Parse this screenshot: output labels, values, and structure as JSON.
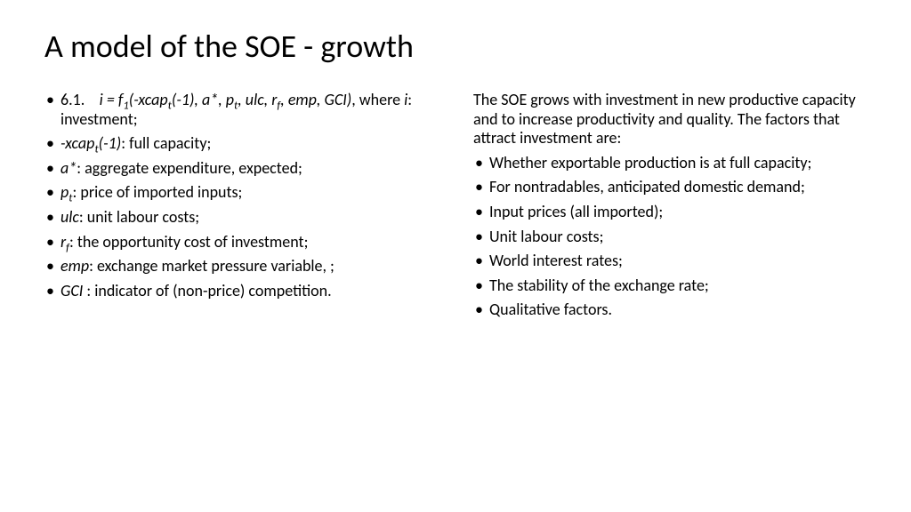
{
  "title": "A model of the SOE - growth",
  "left": {
    "items": [
      {
        "html": "6.1.&nbsp;&nbsp;&nbsp;&nbsp;<span class=\"i\">i = f<sub>1</sub>(-xcap<sub>t</sub>(-1), a*, p<sub>t</sub>, ulc, r<sub>f</sub>, emp, GCI)</span>, where <span class=\"i\">i</span>: investment;"
      },
      {
        "html": "<span class=\"i\">-xcap<sub>t</sub>(-1)</span>: full capacity;"
      },
      {
        "html": "<span class=\"i\">a*</span>: aggregate expenditure, expected;"
      },
      {
        "html": "<span class=\"i\">p<sub>t</sub></span>: price of imported inputs;"
      },
      {
        "html": "<span class=\"i\">ulc</span>: unit labour costs;"
      },
      {
        "html": "<span class=\"i\">r<sub>f</sub></span>: the opportunity cost of investment;"
      },
      {
        "html": "<span class=\"i\">emp</span>: exchange market pressure variable, ;"
      },
      {
        "html": "<span class=\"i\">GCI</span> : indicator of (non-price) competition."
      }
    ]
  },
  "right": {
    "intro": "The SOE grows with investment in new productive capacity and to increase productivity and quality. The factors that attract investment are:",
    "items": [
      "Whether exportable production is at full capacity;",
      "For nontradables, anticipated domestic demand;",
      "Input prices (all imported);",
      "Unit labour costs;",
      "World interest rates;",
      "The stability of the exchange rate;",
      "Qualitative factors."
    ]
  },
  "style": {
    "background": "#ffffff",
    "text_color": "#000000",
    "title_fontsize": 36,
    "body_fontsize": 18
  }
}
